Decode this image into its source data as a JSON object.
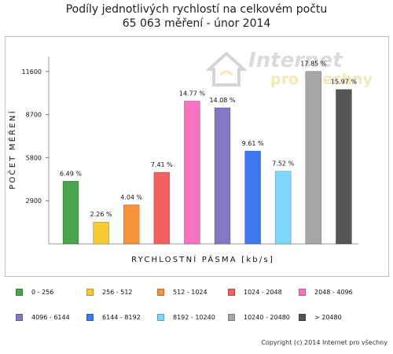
{
  "title_line1": "Podíly jednotlivých rychlostí na celkovém počtu",
  "title_line2": "65 063 měření - únor 2014",
  "watermark": {
    "main": "Internet",
    "sub": "pro všechny"
  },
  "copyright": "Copyright (c) 2014 Internet pro všechny",
  "chart_data": {
    "type": "bar",
    "title": "Podíly jednotlivých rychlostí na celkovém počtu 65 063 měření - únor 2014",
    "xlabel": "RYCHLOSTNÍ PÁSMA [kb/s]",
    "ylabel": "POČET MĚŘENÍ",
    "yticks": [
      2900,
      5800,
      8700,
      11600
    ],
    "ylim": [
      0,
      12600
    ],
    "grid": false,
    "legend_position": "bottom",
    "categories": [
      "0 - 256",
      "256 - 512",
      "512 - 1024",
      "1024 - 2048",
      "2048 - 4096",
      "4096 - 6144",
      "6144 - 8192",
      "8192 - 10240",
      "10240 - 20480",
      "> 20480"
    ],
    "values": [
      4220,
      1470,
      2630,
      4820,
      9610,
      9160,
      6250,
      4890,
      11610,
      10390
    ],
    "labels": [
      "6.49 %",
      "2.26 %",
      "4.04 %",
      "7.41 %",
      "14.77 %",
      "14.08 %",
      "9.61 %",
      "7.52 %",
      "17.85 %",
      "15.97 %"
    ],
    "colors": [
      "#49a44c",
      "#f6c935",
      "#f5943a",
      "#f4605d",
      "#f873bf",
      "#8478c4",
      "#3d78ee",
      "#7fd6fb",
      "#a7a7a7",
      "#555555"
    ]
  }
}
